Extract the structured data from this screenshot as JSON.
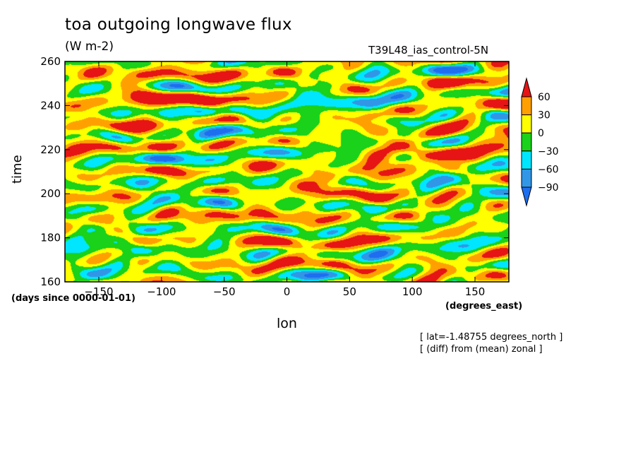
{
  "title": "toa outgoing longwave flux",
  "units": "(W m-2)",
  "run_label": "T39L48_ias_control-5N",
  "notes": [
    "[ lat=-1.48755 degrees_north ]",
    "[ (diff) from (mean) zonal ]"
  ],
  "chart_data": {
    "type": "heatmap",
    "title": "toa outgoing longwave flux",
    "xlabel": "lon",
    "x_units": "(degrees_east)",
    "ylabel": "time",
    "y_units": "(days since 0000-01-01)",
    "xlim": [
      -177,
      177
    ],
    "ylim": [
      160,
      260
    ],
    "x_ticks": [
      -150,
      -100,
      -50,
      0,
      50,
      100,
      150
    ],
    "y_ticks": [
      160,
      180,
      200,
      220,
      240,
      260
    ],
    "colorbar": {
      "levels": [
        -90,
        -60,
        -30,
        0,
        30,
        60
      ],
      "colors": [
        "#1e6ef0",
        "#3296e6",
        "#00e6ff",
        "#19d219",
        "#ffff00",
        "#ffa000",
        "#e61414"
      ],
      "extend": "both"
    }
  }
}
